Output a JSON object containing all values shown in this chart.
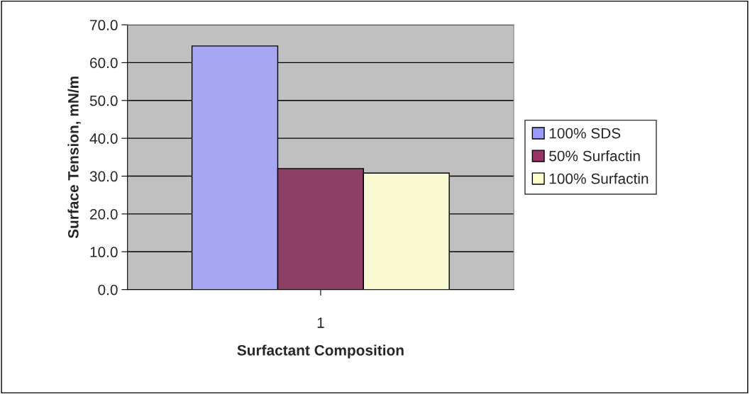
{
  "chart_data": {
    "type": "bar",
    "xlabel": "Surfactant Composition",
    "ylabel": "Surface Tension, mN/m",
    "categories": [
      "1"
    ],
    "series": [
      {
        "name": "100% SDS",
        "color": "#9999ff",
        "values": [
          64.4
        ]
      },
      {
        "name": "50% Surfactin",
        "color": "#993366",
        "values": [
          32.0
        ]
      },
      {
        "name": "100% Surfactin",
        "color": "#ffffcc",
        "values": [
          30.8
        ]
      }
    ],
    "ylim": [
      0,
      70
    ],
    "yticks": [
      {
        "value": 0,
        "label": "0.0"
      },
      {
        "value": 10,
        "label": "10.0"
      },
      {
        "value": 20,
        "label": "20.0"
      },
      {
        "value": 30,
        "label": "30.0"
      },
      {
        "value": 40,
        "label": "40.0"
      },
      {
        "value": 50,
        "label": "50.0"
      },
      {
        "value": 60,
        "label": "60.0"
      },
      {
        "value": 70,
        "label": "70.0"
      }
    ],
    "grid": "y",
    "legend": "right"
  }
}
